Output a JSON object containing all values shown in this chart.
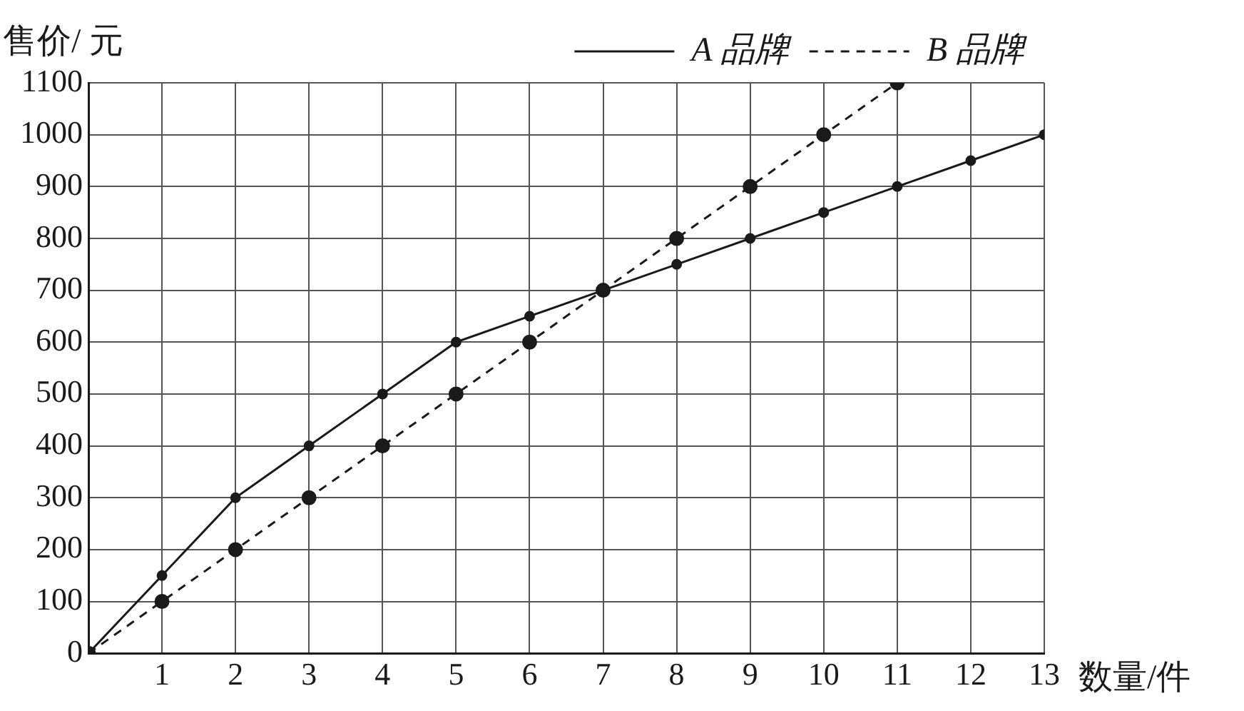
{
  "chart_data": {
    "type": "line",
    "xlabel": "数量/件",
    "ylabel": "售价/ 元",
    "xlim": [
      0,
      13
    ],
    "xticks": [
      1,
      2,
      3,
      4,
      5,
      6,
      7,
      8,
      9,
      10,
      11,
      12,
      13
    ],
    "ylim": [
      0,
      1100
    ],
    "yticks": [
      0,
      100,
      200,
      300,
      400,
      500,
      600,
      700,
      800,
      900,
      1000,
      1100
    ],
    "grid": true,
    "legend": "top right",
    "marker": "circle",
    "series": [
      {
        "name": "A 品牌",
        "color": "#1a1a1a",
        "line_style": "solid",
        "x": [
          0,
          1,
          2,
          3,
          4,
          5,
          6,
          7,
          8,
          9,
          10,
          11,
          12,
          13
        ],
        "values": [
          0,
          150,
          300,
          400,
          500,
          600,
          650,
          700,
          750,
          800,
          850,
          900,
          950,
          1000
        ]
      },
      {
        "name": "B 品牌",
        "color": "#1a1a1a",
        "line_style": "dashed",
        "x": [
          0,
          1,
          2,
          3,
          4,
          5,
          6,
          7,
          8,
          9,
          10,
          11
        ],
        "values": [
          0,
          100,
          200,
          300,
          400,
          500,
          600,
          700,
          800,
          900,
          1000,
          1100
        ]
      }
    ]
  }
}
